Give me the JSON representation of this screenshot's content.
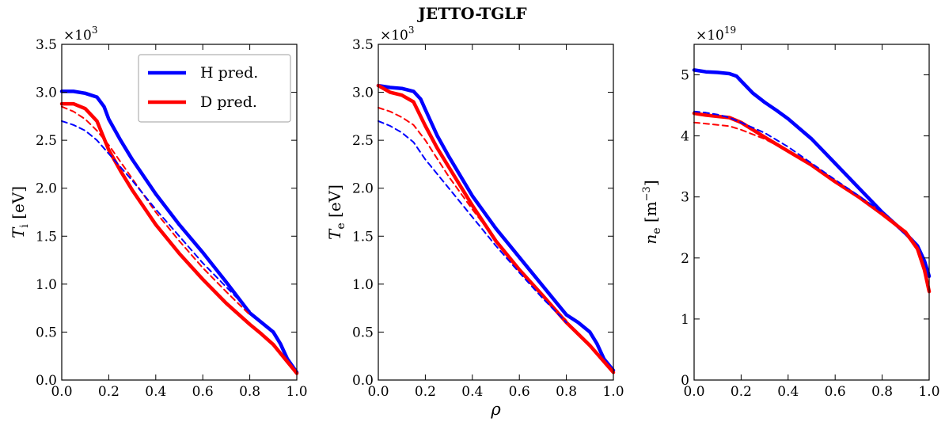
{
  "figure_title": "JETTO-TGLF",
  "colors": {
    "H": "#0000ff",
    "D": "#ff0000",
    "axis": "#000000",
    "legend_border": "#b0b0b0"
  },
  "legend": [
    {
      "label": "H pred.",
      "color": "#0000ff"
    },
    {
      "label": "D pred.",
      "color": "#ff0000"
    }
  ],
  "chart_data": [
    {
      "type": "line",
      "title": "",
      "ylabel": "T_i [eV]",
      "ylabel_main": "T",
      "ylabel_sub": "i",
      "ylabel_units": " [eV]",
      "xlabel": "",
      "multiplier": "×10",
      "multiplier_exp": "3",
      "xlim": [
        0,
        1.0
      ],
      "ylim": [
        0,
        3.5
      ],
      "xticks": [
        "0.0",
        "0.2",
        "0.4",
        "0.6",
        "0.8",
        "1.0"
      ],
      "yticks": [
        "0.0",
        "0.5",
        "1.0",
        "1.5",
        "2.0",
        "2.5",
        "3.0",
        "3.5"
      ],
      "legend_position": "top-right",
      "series": [
        {
          "name": "H pred.",
          "color": "#0000ff",
          "style": "solid",
          "x": [
            0,
            0.05,
            0.1,
            0.15,
            0.18,
            0.2,
            0.25,
            0.3,
            0.4,
            0.5,
            0.6,
            0.7,
            0.8,
            0.85,
            0.9,
            0.93,
            0.96,
            1.0
          ],
          "y": [
            3.01,
            3.01,
            2.99,
            2.95,
            2.85,
            2.72,
            2.5,
            2.3,
            1.94,
            1.62,
            1.33,
            1.02,
            0.7,
            0.6,
            0.5,
            0.38,
            0.22,
            0.08
          ]
        },
        {
          "name": "D pred.",
          "color": "#ff0000",
          "style": "solid",
          "x": [
            0,
            0.05,
            0.1,
            0.15,
            0.2,
            0.25,
            0.3,
            0.4,
            0.5,
            0.6,
            0.7,
            0.8,
            0.85,
            0.9,
            0.95,
            1.0
          ],
          "y": [
            2.88,
            2.88,
            2.83,
            2.7,
            2.4,
            2.18,
            1.98,
            1.62,
            1.32,
            1.05,
            0.8,
            0.58,
            0.48,
            0.37,
            0.22,
            0.07
          ]
        },
        {
          "color": "#ff0000",
          "style": "dashed",
          "x": [
            0,
            0.05,
            0.1,
            0.15,
            0.2,
            0.3,
            0.4,
            0.5,
            0.6,
            0.7,
            0.8
          ],
          "y": [
            2.85,
            2.8,
            2.72,
            2.6,
            2.45,
            2.1,
            1.75,
            1.45,
            1.17,
            0.92,
            0.68
          ]
        },
        {
          "color": "#0000ff",
          "style": "dashed",
          "x": [
            0,
            0.05,
            0.1,
            0.15,
            0.2,
            0.3,
            0.4,
            0.5,
            0.6,
            0.7,
            0.8
          ],
          "y": [
            2.7,
            2.66,
            2.6,
            2.5,
            2.36,
            2.08,
            1.78,
            1.5,
            1.22,
            0.97,
            0.72
          ]
        }
      ]
    },
    {
      "type": "line",
      "title": "",
      "ylabel": "T_e [eV]",
      "ylabel_main": "T",
      "ylabel_sub": "e",
      "ylabel_units": " [eV]",
      "xlabel": "ρ",
      "multiplier": "×10",
      "multiplier_exp": "3",
      "xlim": [
        0,
        1.0
      ],
      "ylim": [
        0,
        3.5
      ],
      "xticks": [
        "0.0",
        "0.2",
        "0.4",
        "0.6",
        "0.8",
        "1.0"
      ],
      "yticks": [
        "0.0",
        "0.5",
        "1.0",
        "1.5",
        "2.0",
        "2.5",
        "3.0",
        "3.5"
      ],
      "series": [
        {
          "name": "H pred.",
          "color": "#0000ff",
          "style": "solid",
          "x": [
            0,
            0.05,
            0.1,
            0.15,
            0.18,
            0.2,
            0.25,
            0.3,
            0.4,
            0.5,
            0.6,
            0.7,
            0.8,
            0.85,
            0.9,
            0.93,
            0.96,
            1.0
          ],
          "y": [
            3.07,
            3.05,
            3.04,
            3.01,
            2.93,
            2.82,
            2.55,
            2.33,
            1.92,
            1.58,
            1.28,
            0.98,
            0.68,
            0.6,
            0.5,
            0.38,
            0.22,
            0.1
          ]
        },
        {
          "name": "D pred.",
          "color": "#ff0000",
          "style": "solid",
          "x": [
            0,
            0.05,
            0.1,
            0.15,
            0.2,
            0.25,
            0.3,
            0.4,
            0.5,
            0.6,
            0.7,
            0.8,
            0.85,
            0.9,
            0.95,
            1.0
          ],
          "y": [
            3.07,
            3.0,
            2.97,
            2.9,
            2.65,
            2.42,
            2.22,
            1.82,
            1.45,
            1.15,
            0.88,
            0.6,
            0.48,
            0.36,
            0.22,
            0.08
          ]
        },
        {
          "color": "#ff0000",
          "style": "dashed",
          "x": [
            0,
            0.05,
            0.1,
            0.15,
            0.2,
            0.3,
            0.4,
            0.5,
            0.6,
            0.7,
            0.8
          ],
          "y": [
            2.84,
            2.8,
            2.74,
            2.66,
            2.5,
            2.12,
            1.78,
            1.46,
            1.16,
            0.88,
            0.62
          ]
        },
        {
          "color": "#0000ff",
          "style": "dashed",
          "x": [
            0,
            0.05,
            0.1,
            0.15,
            0.2,
            0.3,
            0.4,
            0.5,
            0.6,
            0.7,
            0.8
          ],
          "y": [
            2.7,
            2.65,
            2.58,
            2.48,
            2.3,
            2.0,
            1.7,
            1.4,
            1.12,
            0.85,
            0.6
          ]
        }
      ]
    },
    {
      "type": "line",
      "title": "",
      "ylabel": "n_e [m^-3]",
      "ylabel_main": "n",
      "ylabel_sub": "e",
      "ylabel_units": " [m",
      "ylabel_sup": "−3",
      "ylabel_close": "]",
      "xlabel": "",
      "multiplier": "×10",
      "multiplier_exp": "19",
      "xlim": [
        0,
        1.0
      ],
      "ylim": [
        0,
        5.5
      ],
      "xticks": [
        "0.0",
        "0.2",
        "0.4",
        "0.6",
        "0.8",
        "1.0"
      ],
      "yticks": [
        "0",
        "1",
        "2",
        "3",
        "4",
        "5"
      ],
      "series": [
        {
          "name": "H pred.",
          "color": "#0000ff",
          "style": "solid",
          "x": [
            0,
            0.05,
            0.1,
            0.15,
            0.18,
            0.2,
            0.25,
            0.3,
            0.35,
            0.4,
            0.5,
            0.6,
            0.7,
            0.8,
            0.9,
            0.95,
            0.98,
            1.0
          ],
          "y": [
            5.08,
            5.05,
            5.04,
            5.02,
            4.98,
            4.9,
            4.7,
            4.55,
            4.42,
            4.28,
            3.95,
            3.55,
            3.15,
            2.75,
            2.4,
            2.2,
            1.95,
            1.7
          ]
        },
        {
          "name": "D pred.",
          "color": "#ff0000",
          "style": "solid",
          "x": [
            0,
            0.05,
            0.1,
            0.15,
            0.2,
            0.25,
            0.3,
            0.4,
            0.5,
            0.6,
            0.7,
            0.8,
            0.9,
            0.95,
            0.98,
            1.0
          ],
          "y": [
            4.37,
            4.34,
            4.32,
            4.3,
            4.22,
            4.1,
            3.98,
            3.75,
            3.52,
            3.25,
            3.0,
            2.72,
            2.42,
            2.15,
            1.8,
            1.45
          ]
        },
        {
          "color": "#0000ff",
          "style": "dashed",
          "x": [
            0,
            0.05,
            0.1,
            0.15,
            0.2,
            0.3,
            0.4,
            0.5,
            0.6,
            0.7,
            0.8
          ],
          "y": [
            4.4,
            4.38,
            4.35,
            4.3,
            4.22,
            4.05,
            3.82,
            3.55,
            3.28,
            3.02,
            2.75
          ]
        },
        {
          "color": "#ff0000",
          "style": "dashed",
          "x": [
            0,
            0.05,
            0.1,
            0.15,
            0.2,
            0.3,
            0.4,
            0.5,
            0.6,
            0.7,
            0.8
          ],
          "y": [
            4.22,
            4.2,
            4.18,
            4.16,
            4.1,
            3.95,
            3.75,
            3.52,
            3.26,
            3.0,
            2.72
          ]
        }
      ]
    }
  ]
}
